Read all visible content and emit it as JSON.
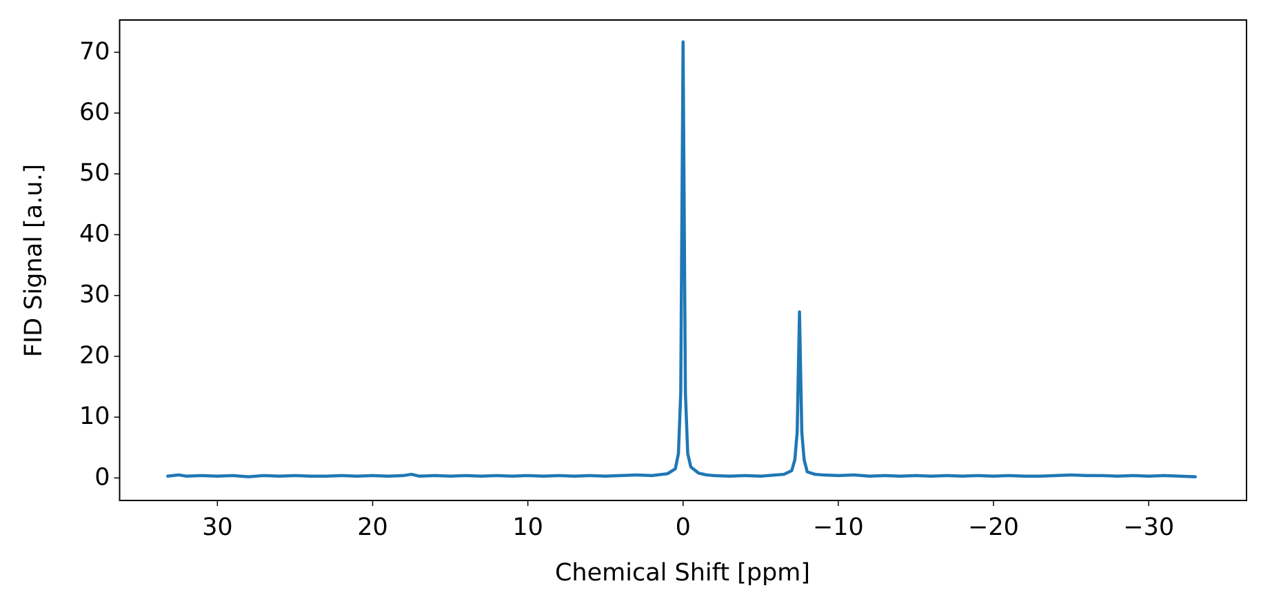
{
  "chart_data": {
    "type": "line",
    "xlabel": "Chemical Shift [ppm]",
    "ylabel": "FID Signal [a.u.]",
    "x": [
      33.2,
      32.5,
      32,
      31,
      30,
      29,
      28,
      27,
      26,
      25,
      24,
      23,
      22,
      21,
      20,
      19,
      18,
      17.5,
      17,
      16,
      15,
      14,
      13,
      12,
      11,
      10,
      9,
      8,
      7,
      6,
      5,
      4,
      3,
      2,
      1,
      0.5,
      0.3,
      0.15,
      0,
      -0.15,
      -0.3,
      -0.5,
      -1,
      -1.5,
      -2,
      -3,
      -4,
      -5,
      -6,
      -6.5,
      -7,
      -7.2,
      -7.35,
      -7.5,
      -7.65,
      -7.8,
      -8,
      -8.5,
      -9,
      -10,
      -11,
      -12,
      -13,
      -14,
      -15,
      -16,
      -17,
      -18,
      -19,
      -20,
      -21,
      -22,
      -23,
      -24,
      -25,
      -26,
      -27,
      -28,
      -29,
      -30,
      -31,
      -32,
      -33
    ],
    "series": [
      {
        "name": "FID",
        "color": "#1f77b4",
        "values": [
          0.3,
          0.5,
          0.3,
          0.4,
          0.3,
          0.4,
          0.2,
          0.4,
          0.3,
          0.4,
          0.3,
          0.3,
          0.4,
          0.3,
          0.4,
          0.3,
          0.4,
          0.6,
          0.3,
          0.4,
          0.3,
          0.4,
          0.3,
          0.4,
          0.3,
          0.4,
          0.3,
          0.4,
          0.3,
          0.4,
          0.3,
          0.4,
          0.5,
          0.4,
          0.7,
          1.5,
          4.0,
          14,
          71.7,
          14,
          4.0,
          1.8,
          0.8,
          0.5,
          0.4,
          0.3,
          0.4,
          0.3,
          0.5,
          0.6,
          1.2,
          3.0,
          7.5,
          27.3,
          7.5,
          3.0,
          1.0,
          0.6,
          0.5,
          0.4,
          0.5,
          0.3,
          0.4,
          0.3,
          0.4,
          0.3,
          0.4,
          0.3,
          0.4,
          0.3,
          0.4,
          0.3,
          0.3,
          0.4,
          0.5,
          0.4,
          0.4,
          0.3,
          0.4,
          0.3,
          0.4,
          0.3,
          0.2
        ]
      }
    ],
    "xlim": [
      36.3,
      -36.3
    ],
    "ylim": [
      -3.7,
      75.3
    ],
    "xticks": [
      30,
      20,
      10,
      0,
      {
        "value": -10,
        "label": "−10"
      },
      {
        "value": -20,
        "label": "−20"
      },
      {
        "value": -30,
        "label": "−30"
      }
    ],
    "yticks": [
      0,
      10,
      20,
      30,
      40,
      50,
      60,
      70
    ]
  }
}
